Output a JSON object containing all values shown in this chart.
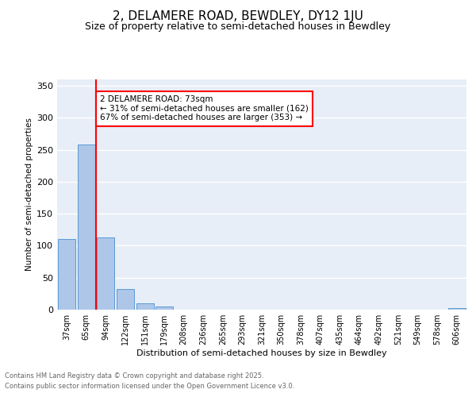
{
  "title": "2, DELAMERE ROAD, BEWDLEY, DY12 1JU",
  "subtitle": "Size of property relative to semi-detached houses in Bewdley",
  "xlabel": "Distribution of semi-detached houses by size in Bewdley",
  "ylabel": "Number of semi-detached properties",
  "footnote1": "Contains HM Land Registry data © Crown copyright and database right 2025.",
  "footnote2": "Contains public sector information licensed under the Open Government Licence v3.0.",
  "bar_labels": [
    "37sqm",
    "65sqm",
    "94sqm",
    "122sqm",
    "151sqm",
    "179sqm",
    "208sqm",
    "236sqm",
    "265sqm",
    "293sqm",
    "321sqm",
    "350sqm",
    "378sqm",
    "407sqm",
    "435sqm",
    "464sqm",
    "492sqm",
    "521sqm",
    "549sqm",
    "578sqm",
    "606sqm"
  ],
  "bar_values": [
    110,
    258,
    113,
    32,
    10,
    5,
    0,
    0,
    0,
    0,
    0,
    0,
    0,
    0,
    0,
    0,
    0,
    0,
    0,
    0,
    3
  ],
  "bar_color": "#aec6e8",
  "bar_edgecolor": "#5b9bd5",
  "background_color": "#e8eef7",
  "grid_color": "#ffffff",
  "red_line_x": 1.5,
  "annotation_box_text": "2 DELAMERE ROAD: 73sqm\n← 31% of semi-detached houses are smaller (162)\n67% of semi-detached houses are larger (353) →",
  "ylim": [
    0,
    360
  ],
  "yticks": [
    0,
    50,
    100,
    150,
    200,
    250,
    300,
    350
  ],
  "title_fontsize": 11,
  "subtitle_fontsize": 9
}
